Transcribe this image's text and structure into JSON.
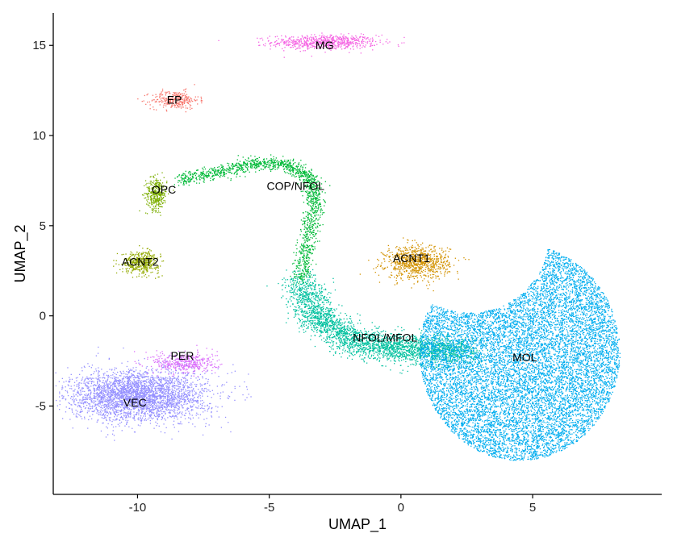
{
  "chart_data": {
    "type": "scatter",
    "title": "",
    "xlabel": "UMAP_1",
    "ylabel": "UMAP_2",
    "xlim": [
      -13.2,
      9.9
    ],
    "ylim": [
      -9.9,
      16.8
    ],
    "x_ticks": [
      -10,
      -5,
      0,
      5
    ],
    "y_ticks": [
      -5,
      0,
      5,
      10,
      15
    ],
    "grid": false,
    "legend": "none",
    "clusters": [
      {
        "name": "MG",
        "color": "#F564E3",
        "label_pos": [
          -2.9,
          15.0
        ],
        "shape": "blob",
        "center": [
          -2.9,
          15.2
        ],
        "spread": [
          2.0,
          0.4
        ],
        "n": 700
      },
      {
        "name": "EP",
        "color": "#F8766D",
        "label_pos": [
          -8.6,
          12.0
        ],
        "shape": "blob",
        "center": [
          -8.6,
          12.0
        ],
        "spread": [
          0.9,
          0.5
        ],
        "n": 300
      },
      {
        "name": "OPC",
        "color": "#7CAE00",
        "label_pos": [
          -9.0,
          7.0
        ],
        "shape": "blob",
        "center": [
          -9.3,
          6.8
        ],
        "spread": [
          0.4,
          0.9
        ],
        "n": 350
      },
      {
        "name": "COP/NFOL",
        "color": "#00BA38",
        "label_pos": [
          -4.0,
          7.2
        ],
        "shape": "path",
        "points": [
          [
            -8.5,
            7.5
          ],
          [
            -7.0,
            8.0
          ],
          [
            -5.5,
            8.5
          ],
          [
            -4.3,
            8.4
          ],
          [
            -3.4,
            7.6
          ],
          [
            -3.3,
            6.0
          ],
          [
            -3.6,
            4.0
          ],
          [
            -3.8,
            2.0
          ]
        ],
        "spread": [
          0.35,
          0.35
        ],
        "n": 1500
      },
      {
        "name": "ACNT1",
        "color": "#D39200",
        "label_pos": [
          0.4,
          3.2
        ],
        "shape": "blob",
        "center": [
          0.6,
          3.0
        ],
        "spread": [
          1.2,
          0.9
        ],
        "n": 900
      },
      {
        "name": "ACNT2",
        "color": "#93AA00",
        "label_pos": [
          -9.9,
          3.0
        ],
        "shape": "blob",
        "center": [
          -9.9,
          3.0
        ],
        "spread": [
          0.7,
          0.6
        ],
        "n": 450
      },
      {
        "name": "PER",
        "color": "#DB72FB",
        "label_pos": [
          -8.3,
          -2.2
        ],
        "shape": "blob",
        "center": [
          -8.2,
          -2.6
        ],
        "spread": [
          1.2,
          0.6
        ],
        "n": 450
      },
      {
        "name": "VEC",
        "color": "#9590FF",
        "label_pos": [
          -10.1,
          -4.8
        ],
        "shape": "blob",
        "center": [
          -10.0,
          -4.4
        ],
        "spread": [
          2.6,
          1.4
        ],
        "n": 3200
      },
      {
        "name": "NFOL/MFOL",
        "color": "#00C19F",
        "label_pos": [
          -0.6,
          -1.2
        ],
        "shape": "path",
        "points": [
          [
            -3.8,
            2.0
          ],
          [
            -3.3,
            0.0
          ],
          [
            -2.0,
            -1.3
          ],
          [
            -0.5,
            -1.8
          ],
          [
            1.0,
            -1.8
          ],
          [
            2.5,
            -2.0
          ]
        ],
        "spread": [
          0.8,
          0.8
        ],
        "n": 3000
      },
      {
        "name": "MOL",
        "color": "#00ADEF",
        "label_pos": [
          4.7,
          -2.3
        ],
        "shape": "crescent",
        "center": [
          4.5,
          -2.0
        ],
        "spread": [
          3.8,
          4.0
        ],
        "n": 11000
      }
    ]
  }
}
